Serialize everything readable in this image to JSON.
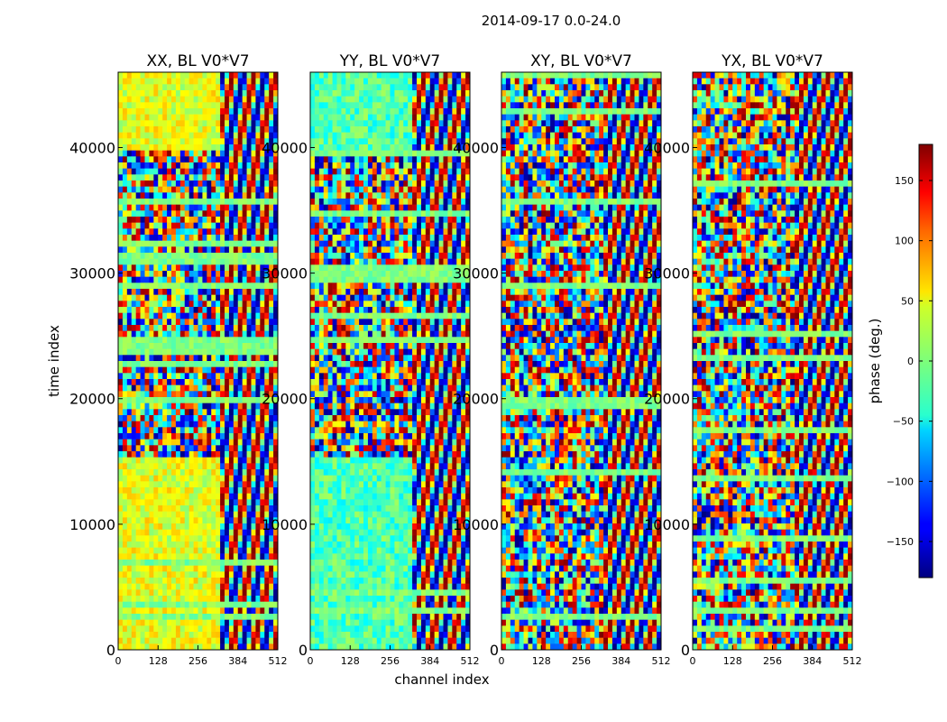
{
  "chart_data": {
    "type": "heatmap",
    "title": "2014-09-17 0.0-24.0",
    "xlabel": "channel index",
    "ylabel": "time index",
    "xlim": [
      0,
      512
    ],
    "ylim": [
      0,
      46000
    ],
    "x_ticks": [
      "0",
      "128",
      "256",
      "384",
      "512"
    ],
    "y_ticks": [
      "0",
      "10000",
      "20000",
      "30000",
      "40000"
    ],
    "panels": [
      {
        "title": "XX, BL V0*V7"
      },
      {
        "title": "YY, BL V0*V7"
      },
      {
        "title": "XY, BL V0*V7"
      },
      {
        "title": "YX, BL V0*V7"
      }
    ],
    "colorbar": {
      "label": "phase (deg.)",
      "range": [
        -180,
        180
      ],
      "ticks": [
        "150",
        "100",
        "50",
        "0",
        "−50",
        "−100",
        "−150"
      ],
      "colormap": "jet"
    }
  }
}
